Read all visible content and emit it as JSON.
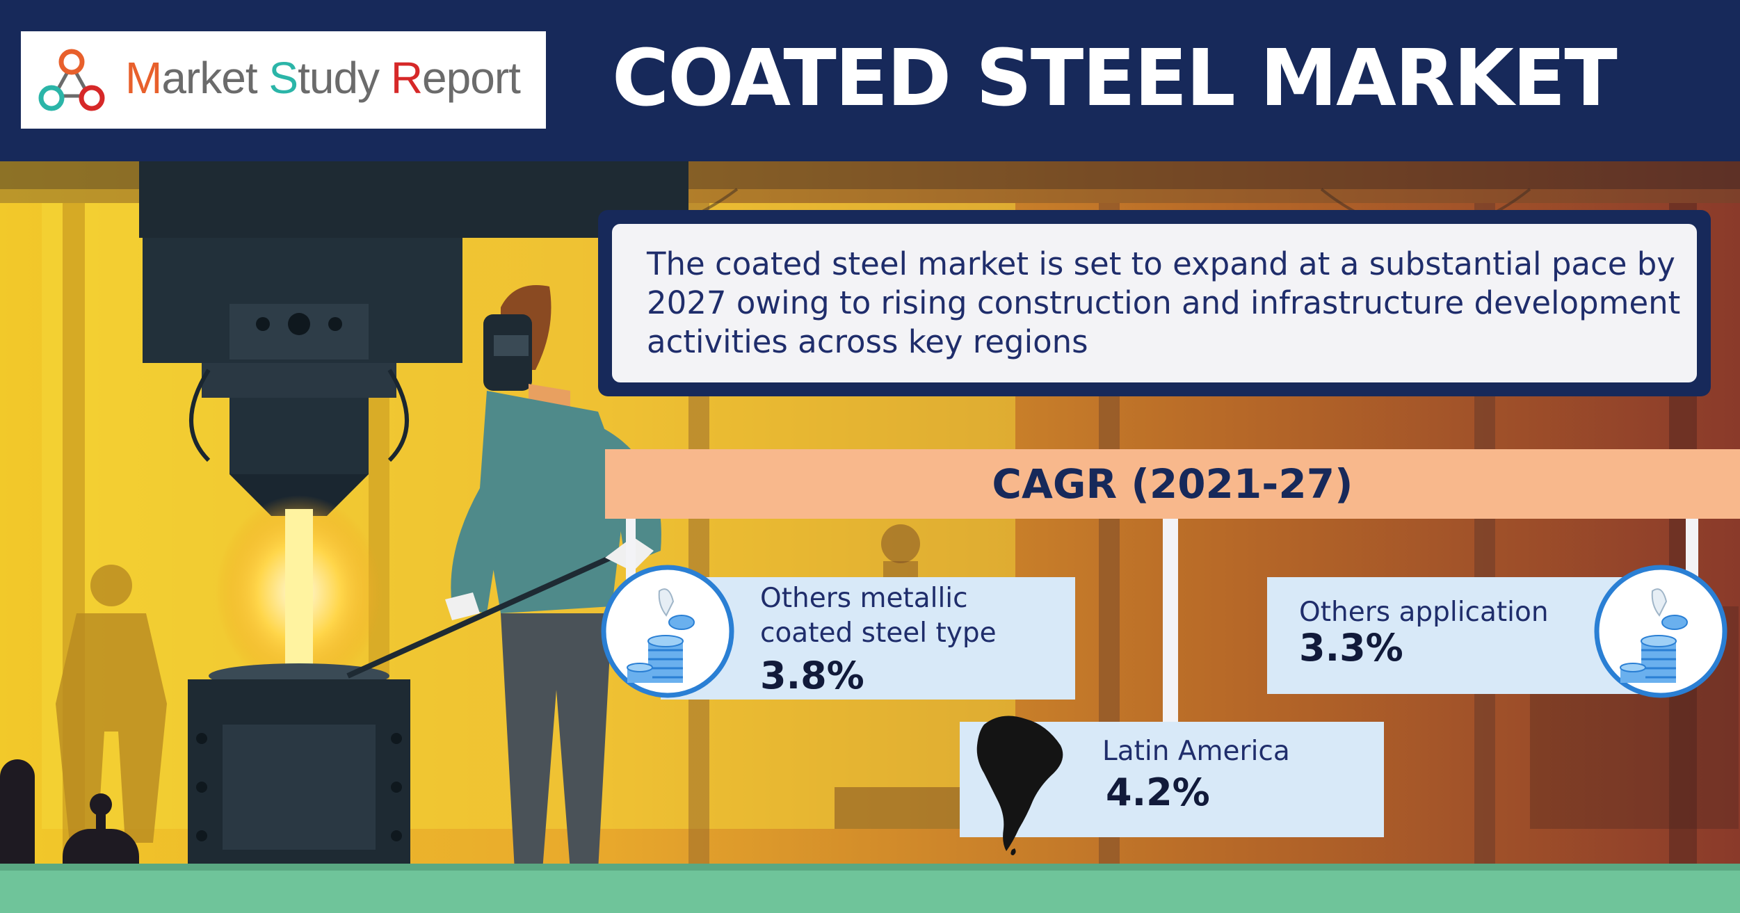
{
  "logo": {
    "part_m": "M",
    "part_arket": "arket ",
    "part_s": "S",
    "part_tudy": "tudy ",
    "part_r": "R",
    "part_eport": "eport",
    "icon": "molecule-network-icon"
  },
  "header": {
    "title": "COATED STEEL MARKET"
  },
  "description": {
    "text": "The coated steel market is set to expand at a substantial pace by 2027 owing to rising construction and infrastructure development activities across key regions"
  },
  "cagr": {
    "label": "CAGR (2021-27)"
  },
  "segments": [
    {
      "label": "Others metallic coated steel type",
      "value": "3.8%",
      "icon": "coin-stack-icon"
    },
    {
      "label": "Others application",
      "value": "3.3%",
      "icon": "coin-stack-icon"
    },
    {
      "label": "Latin America",
      "value": "4.2%",
      "icon": "south-america-map-icon"
    }
  ],
  "colors": {
    "navy": "#17295a",
    "peach": "#f8b88c",
    "card": "#d8e9f8",
    "floor": "#6fc49a",
    "coin": "#2a7fd4"
  }
}
